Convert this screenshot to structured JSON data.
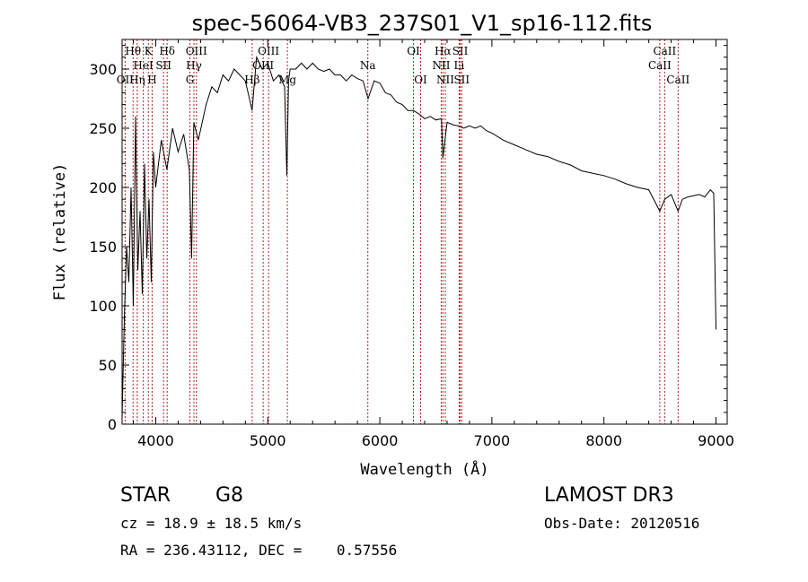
{
  "chart_data": {
    "type": "line",
    "title": "spec-56064-VB3_237S01_V1_sp16-112.fits",
    "xlabel": "Wavelength (Å)",
    "ylabel": "Flux (relative)",
    "xlim": [
      3700,
      9100
    ],
    "ylim": [
      0,
      325
    ],
    "x_ticks": [
      4000,
      5000,
      6000,
      7000,
      8000,
      9000
    ],
    "y_ticks": [
      0,
      50,
      100,
      150,
      200,
      250,
      300
    ],
    "grid": false,
    "line_color": "#000000",
    "marker_color": "#b22222",
    "series": [
      {
        "name": "spectrum",
        "x": [
          3700,
          3720,
          3740,
          3760,
          3780,
          3800,
          3820,
          3840,
          3860,
          3880,
          3900,
          3920,
          3940,
          3960,
          3980,
          4000,
          4050,
          4100,
          4150,
          4200,
          4250,
          4300,
          4320,
          4340,
          4380,
          4450,
          4500,
          4550,
          4600,
          4650,
          4700,
          4750,
          4800,
          4860,
          4900,
          4950,
          5000,
          5050,
          5100,
          5150,
          5170,
          5185,
          5200,
          5250,
          5300,
          5350,
          5400,
          5450,
          5500,
          5550,
          5600,
          5650,
          5700,
          5750,
          5800,
          5850,
          5895,
          5950,
          6000,
          6050,
          6100,
          6150,
          6200,
          6250,
          6300,
          6350,
          6400,
          6450,
          6500,
          6550,
          6563,
          6600,
          6650,
          6700,
          6750,
          6800,
          6850,
          6900,
          6950,
          7000,
          7100,
          7200,
          7300,
          7400,
          7500,
          7600,
          7700,
          7800,
          7900,
          8000,
          8100,
          8200,
          8300,
          8400,
          8498,
          8542,
          8600,
          8662,
          8700,
          8750,
          8800,
          8850,
          8900,
          8950,
          8980,
          9000
        ],
        "values": [
          5,
          90,
          150,
          120,
          200,
          100,
          260,
          130,
          180,
          110,
          220,
          140,
          190,
          120,
          230,
          200,
          240,
          215,
          250,
          230,
          245,
          215,
          140,
          255,
          240,
          270,
          285,
          280,
          295,
          290,
          300,
          295,
          290,
          265,
          310,
          300,
          305,
          290,
          295,
          285,
          210,
          290,
          300,
          300,
          305,
          300,
          305,
          300,
          298,
          300,
          295,
          295,
          290,
          295,
          292,
          290,
          275,
          290,
          288,
          280,
          278,
          272,
          270,
          265,
          265,
          262,
          258,
          260,
          257,
          258,
          225,
          255,
          253,
          252,
          250,
          252,
          250,
          252,
          248,
          246,
          240,
          236,
          232,
          228,
          226,
          222,
          219,
          214,
          212,
          210,
          207,
          203,
          200,
          198,
          180,
          190,
          194,
          180,
          190,
          192,
          193,
          194,
          192,
          198,
          195,
          80
        ]
      }
    ],
    "line_markers": [
      {
        "label": "Hθ",
        "x": 3798,
        "row": 0
      },
      {
        "label": "OII",
        "x": 3727,
        "row": 2
      },
      {
        "label": "Hη",
        "x": 3835,
        "row": 2
      },
      {
        "label": "HeI",
        "x": 3889,
        "row": 1
      },
      {
        "label": "K",
        "x": 3934,
        "row": 0
      },
      {
        "label": "H",
        "x": 3968,
        "row": 2
      },
      {
        "label": "SII",
        "x": 4070,
        "row": 1
      },
      {
        "label": "Hδ",
        "x": 4102,
        "row": 0
      },
      {
        "label": "G",
        "x": 4305,
        "row": 2
      },
      {
        "label": "OIII",
        "x": 4363,
        "row": 0
      },
      {
        "label": "Hγ",
        "x": 4341,
        "row": 1
      },
      {
        "label": "Hβ",
        "x": 4861,
        "row": 2
      },
      {
        "label": "OIII",
        "x": 5007,
        "row": 0
      },
      {
        "label": "OIII",
        "x": 4959,
        "row": 1
      },
      {
        "label": "Mg",
        "x": 5175,
        "row": 2
      },
      {
        "label": "Na",
        "x": 5893,
        "row": 1
      },
      {
        "label": "OI",
        "x": 6300,
        "row": 0
      },
      {
        "label": "OI",
        "x": 6364,
        "row": 2
      },
      {
        "label": "NII",
        "x": 6548,
        "row": 1
      },
      {
        "label": "Hα",
        "x": 6563,
        "row": 0
      },
      {
        "label": "NII",
        "x": 6584,
        "row": 2
      },
      {
        "label": "SII",
        "x": 6717,
        "row": 0
      },
      {
        "label": "Li",
        "x": 6708,
        "row": 1
      },
      {
        "label": "SII",
        "x": 6731,
        "row": 2
      },
      {
        "label": "CaII",
        "x": 8498,
        "row": 1
      },
      {
        "label": "CaII",
        "x": 8542,
        "row": 0
      },
      {
        "label": "CaII",
        "x": 8662,
        "row": 2
      }
    ]
  },
  "info": {
    "object_class": "STAR",
    "subclass": "G8",
    "survey": "LAMOST DR3",
    "redshift": "cz = 18.9 ± 18.5 km/s",
    "obs_date": "Obs-Date: 20120516",
    "coords": "RA = 236.43112, DEC =    0.57556"
  }
}
